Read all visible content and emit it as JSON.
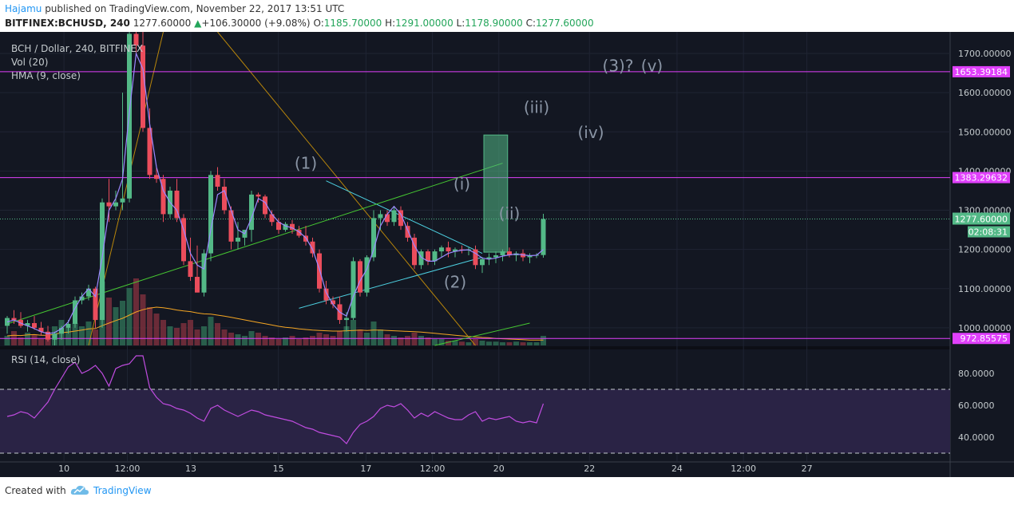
{
  "header": {
    "author": "Hajamu",
    "published_text": "published on TradingView.com, November 22, 2017 13:51 UTC",
    "symbol": "BITFINEX:BCHUSD, 240",
    "last": "1277.60000",
    "change": "+106.30000 (+9.08%)",
    "open_label": "O:",
    "open": "1185.70000",
    "high_label": "H:",
    "high": "1291.00000",
    "low_label": "L:",
    "low": "1178.90000",
    "close_label": "C:",
    "close": "1277.60000"
  },
  "legend": {
    "title": "BCH / Dollar, 240, BITFINEX",
    "vol": "Vol (20)",
    "hma": "HMA (9, close)",
    "rsi": "RSI (14, close)"
  },
  "footer": {
    "created_with": "Created with",
    "brand": "TradingView"
  },
  "colors": {
    "bg": "#131722",
    "up": "#53b987",
    "down": "#eb4d5c",
    "hline": "#e040fb",
    "wedge": "#4dd0e1",
    "trend": "#46c832",
    "hma": "#9c88ff",
    "volma": "#f5a623",
    "fan": "#b8860b",
    "rsi": "#c04ce0",
    "rsiband": "#2a2345"
  },
  "chart_data": {
    "type": "candlestick",
    "title": "BCH / Dollar, 240, BITFINEX",
    "x_ticks": [
      "10",
      "12:00",
      "13",
      "15",
      "17",
      "12:00",
      "20",
      "22",
      "24",
      "12:00",
      "27"
    ],
    "y_ticks": [
      "1700.00000",
      "1600.00000",
      "1500.00000",
      "1400.00000",
      "1300.00000",
      "1200.00000",
      "1100.00000",
      "1000.00000"
    ],
    "ylim": [
      955,
      1755
    ],
    "last_price_label": "1277.60000",
    "countdown_label": "02:08:31",
    "horizontal_levels": [
      {
        "value": 1653.39184,
        "label": "1653.39184"
      },
      {
        "value": 1383.29632,
        "label": "1383.29632"
      },
      {
        "value": 972.85575,
        "label": "972.85575"
      }
    ],
    "wave_labels": [
      {
        "text": "(1)",
        "i": 44,
        "price": 1406
      },
      {
        "text": "(2)",
        "i": 66,
        "price": 1103
      },
      {
        "text": "(i)",
        "i": 67,
        "price": 1353
      },
      {
        "text": "(ii)",
        "i": 74,
        "price": 1278
      },
      {
        "text": "(iii)",
        "i": 78,
        "price": 1548
      },
      {
        "text": "(iv)",
        "i": 86,
        "price": 1484
      },
      {
        "text": "(3)?",
        "i": 90,
        "price": 1654
      },
      {
        "text": "(v)",
        "i": 95,
        "price": 1654
      }
    ],
    "trendlines": [
      {
        "name": "wedge-upper",
        "from": [
          47,
          1375
        ],
        "to": [
          70,
          1190
        ]
      },
      {
        "name": "wedge-lower",
        "from": [
          43,
          1050
        ],
        "to": [
          70,
          1180
        ]
      },
      {
        "name": "rising-trendline",
        "from": [
          0,
          1010
        ],
        "to": [
          73,
          1420
        ]
      },
      {
        "name": "rising-trendline-lower",
        "from": [
          63,
          955
        ],
        "to": [
          77,
          1012
        ]
      }
    ],
    "projection_box": {
      "i_from": 70,
      "i_to": 72.5,
      "price_top": 1492,
      "price_bottom": 1193
    },
    "candles": [
      [
        1005,
        1030,
        985,
        1025
      ],
      [
        1025,
        1045,
        1010,
        1020
      ],
      [
        1020,
        1040,
        1000,
        1005
      ],
      [
        1005,
        1020,
        990,
        1012
      ],
      [
        1012,
        1030,
        995,
        1000
      ],
      [
        1000,
        1015,
        980,
        990
      ],
      [
        990,
        1005,
        965,
        970
      ],
      [
        970,
        990,
        955,
        985
      ],
      [
        985,
        1005,
        970,
        1000
      ],
      [
        1000,
        1020,
        985,
        1010
      ],
      [
        1010,
        1080,
        1000,
        1070
      ],
      [
        1070,
        1090,
        1060,
        1080
      ],
      [
        1080,
        1110,
        1070,
        1100
      ],
      [
        1100,
        1105,
        1000,
        1020
      ],
      [
        1020,
        1330,
        1000,
        1320
      ],
      [
        1320,
        1380,
        1270,
        1310
      ],
      [
        1310,
        1350,
        1300,
        1320
      ],
      [
        1320,
        1600,
        1300,
        1330
      ],
      [
        1330,
        1760,
        1320,
        1750
      ],
      [
        1750,
        1760,
        1700,
        1720
      ],
      [
        1720,
        1760,
        1500,
        1510
      ],
      [
        1510,
        1560,
        1380,
        1390
      ],
      [
        1390,
        1410,
        1370,
        1380
      ],
      [
        1380,
        1390,
        1270,
        1290
      ],
      [
        1290,
        1360,
        1280,
        1350
      ],
      [
        1350,
        1380,
        1270,
        1280
      ],
      [
        1280,
        1290,
        1160,
        1170
      ],
      [
        1170,
        1230,
        1120,
        1130
      ],
      [
        1130,
        1210,
        1090,
        1090
      ],
      [
        1090,
        1200,
        1080,
        1190
      ],
      [
        1190,
        1400,
        1170,
        1390
      ],
      [
        1390,
        1410,
        1350,
        1360
      ],
      [
        1360,
        1380,
        1290,
        1300
      ],
      [
        1300,
        1310,
        1200,
        1220
      ],
      [
        1220,
        1270,
        1200,
        1230
      ],
      [
        1230,
        1250,
        1210,
        1250
      ],
      [
        1250,
        1350,
        1220,
        1340
      ],
      [
        1340,
        1345,
        1320,
        1335
      ],
      [
        1335,
        1340,
        1280,
        1290
      ],
      [
        1290,
        1300,
        1260,
        1270
      ],
      [
        1270,
        1280,
        1240,
        1250
      ],
      [
        1250,
        1270,
        1245,
        1265
      ],
      [
        1265,
        1275,
        1240,
        1250
      ],
      [
        1250,
        1260,
        1230,
        1235
      ],
      [
        1235,
        1260,
        1210,
        1220
      ],
      [
        1220,
        1230,
        1180,
        1190
      ],
      [
        1190,
        1200,
        1090,
        1100
      ],
      [
        1100,
        1120,
        1060,
        1070
      ],
      [
        1070,
        1080,
        1050,
        1060
      ],
      [
        1060,
        1080,
        1010,
        1020
      ],
      [
        1020,
        1040,
        990,
        1025
      ],
      [
        1025,
        1180,
        1020,
        1170
      ],
      [
        1170,
        1175,
        1080,
        1090
      ],
      [
        1090,
        1185,
        1080,
        1180
      ],
      [
        1180,
        1300,
        1170,
        1280
      ],
      [
        1280,
        1300,
        1250,
        1290
      ],
      [
        1290,
        1300,
        1260,
        1270
      ],
      [
        1270,
        1310,
        1260,
        1300
      ],
      [
        1300,
        1310,
        1250,
        1260
      ],
      [
        1260,
        1270,
        1220,
        1230
      ],
      [
        1230,
        1240,
        1150,
        1160
      ],
      [
        1160,
        1200,
        1150,
        1195
      ],
      [
        1195,
        1200,
        1160,
        1170
      ],
      [
        1170,
        1200,
        1160,
        1195
      ],
      [
        1195,
        1210,
        1180,
        1205
      ],
      [
        1205,
        1220,
        1180,
        1195
      ],
      [
        1195,
        1205,
        1180,
        1200
      ],
      [
        1200,
        1210,
        1190,
        1198
      ],
      [
        1198,
        1205,
        1185,
        1200
      ],
      [
        1200,
        1210,
        1150,
        1160
      ],
      [
        1160,
        1180,
        1140,
        1175
      ],
      [
        1175,
        1190,
        1160,
        1180
      ],
      [
        1180,
        1195,
        1165,
        1185
      ],
      [
        1185,
        1200,
        1170,
        1195
      ],
      [
        1195,
        1205,
        1180,
        1185
      ],
      [
        1185,
        1195,
        1170,
        1190
      ],
      [
        1190,
        1200,
        1170,
        1180
      ],
      [
        1180,
        1190,
        1165,
        1185
      ],
      [
        1185,
        1190,
        1178,
        1186
      ],
      [
        1185.7,
        1291,
        1178.9,
        1277.6
      ]
    ],
    "volume_ylim": [
      0,
      300
    ],
    "volume": [
      30,
      45,
      25,
      40,
      35,
      20,
      30,
      60,
      80,
      55,
      70,
      60,
      75,
      50,
      200,
      150,
      120,
      140,
      180,
      210,
      160,
      120,
      100,
      80,
      60,
      55,
      70,
      80,
      50,
      60,
      90,
      70,
      50,
      40,
      35,
      30,
      45,
      40,
      30,
      25,
      20,
      25,
      30,
      20,
      25,
      30,
      40,
      35,
      30,
      45,
      60,
      80,
      50,
      40,
      75,
      50,
      35,
      30,
      25,
      30,
      40,
      30,
      25,
      20,
      20,
      15,
      15,
      12,
      10,
      20,
      15,
      12,
      12,
      10,
      10,
      12,
      10,
      10,
      10,
      30
    ],
    "volume_ma": [
      30,
      32,
      31,
      33,
      34,
      32,
      32,
      35,
      40,
      42,
      45,
      48,
      52,
      53,
      62,
      70,
      78,
      85,
      95,
      105,
      112,
      117,
      120,
      118,
      115,
      111,
      108,
      106,
      102,
      99,
      98,
      95,
      92,
      88,
      84,
      80,
      76,
      72,
      68,
      64,
      60,
      57,
      55,
      52,
      50,
      48,
      47,
      46,
      45,
      45,
      46,
      47,
      48,
      47,
      48,
      48,
      47,
      46,
      45,
      44,
      43,
      42,
      40,
      38,
      36,
      34,
      32,
      30,
      28,
      27,
      25,
      24,
      22,
      21,
      20,
      19,
      18,
      17,
      17,
      17
    ],
    "hma": [
      1015,
      1020,
      1012,
      1005,
      998,
      990,
      985,
      988,
      998,
      1015,
      1050,
      1080,
      1100,
      1080,
      1180,
      1300,
      1330,
      1380,
      1550,
      1700,
      1660,
      1520,
      1410,
      1350,
      1320,
      1300,
      1250,
      1190,
      1160,
      1150,
      1250,
      1340,
      1350,
      1300,
      1250,
      1240,
      1280,
      1330,
      1320,
      1290,
      1270,
      1260,
      1255,
      1245,
      1230,
      1200,
      1150,
      1090,
      1060,
      1040,
      1030,
      1080,
      1120,
      1150,
      1200,
      1260,
      1290,
      1310,
      1290,
      1250,
      1210,
      1180,
      1170,
      1170,
      1180,
      1190,
      1195,
      1198,
      1199,
      1190,
      1178,
      1175,
      1178,
      1183,
      1186,
      1188,
      1186,
      1184,
      1185,
      1200
    ],
    "rsi_ylim": [
      25,
      95
    ],
    "rsi_ticks": [
      "80.0000",
      "60.0000",
      "40.0000"
    ],
    "rsi_bands": [
      70,
      30
    ],
    "rsi": [
      53,
      54,
      56,
      55,
      52,
      57,
      62,
      70,
      77,
      84,
      87,
      80,
      82,
      85,
      80,
      72,
      83,
      85,
      86,
      91,
      91,
      71,
      65,
      61,
      60,
      58,
      57,
      55,
      52,
      50,
      58,
      60,
      57,
      55,
      53,
      55,
      57,
      56,
      54,
      53,
      52,
      51,
      50,
      48,
      46,
      45,
      43,
      42,
      41,
      40,
      36,
      43,
      48,
      50,
      53,
      58,
      60,
      59,
      61,
      57,
      52,
      55,
      53,
      56,
      54,
      52,
      51,
      51,
      54,
      56,
      50,
      52,
      51,
      52,
      53,
      50,
      49,
      50,
      49,
      61
    ]
  }
}
